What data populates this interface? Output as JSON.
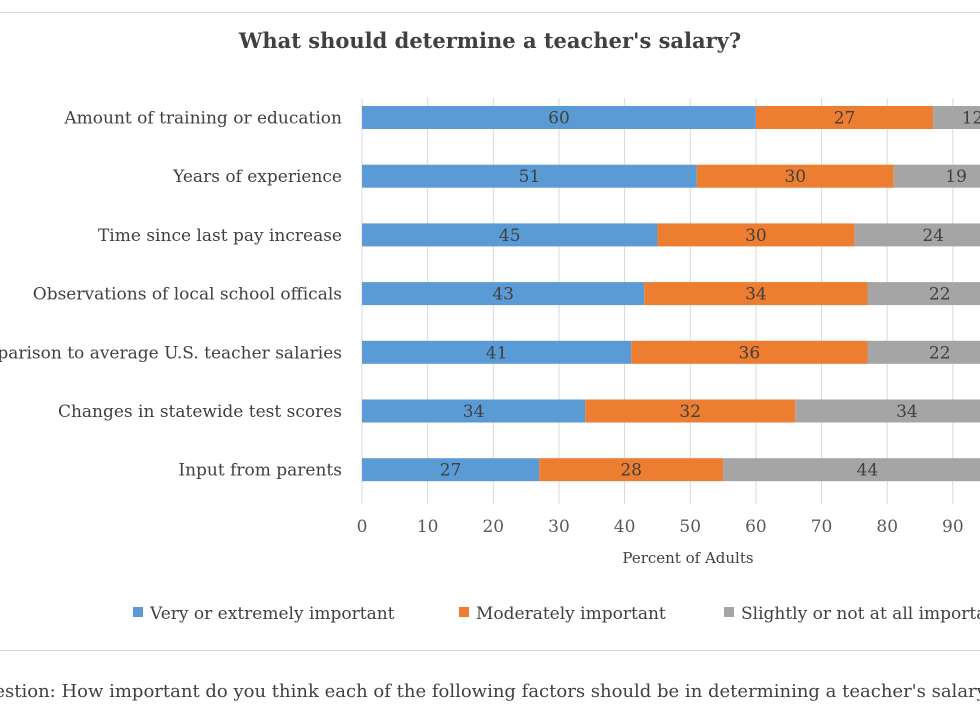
{
  "chart_data": {
    "type": "bar",
    "orientation": "horizontal",
    "stacked": true,
    "title": "What should determine a teacher's salary?",
    "xlabel": "Percent of Adults",
    "ylabel": "",
    "xlim": [
      0,
      100
    ],
    "xticks": [
      "0",
      "10",
      "20",
      "30",
      "40",
      "50",
      "60",
      "70",
      "80",
      "90"
    ],
    "grid": true,
    "legend_position": "bottom",
    "categories": [
      "Amount of training or education",
      "Years of experience",
      "Time since last pay increase",
      "Observations of local school officals",
      "Comparison to average U.S. teacher salaries ",
      "Changes in statewide test scores",
      "Input from parents"
    ],
    "series": [
      {
        "name": "Very or extremely important",
        "color": "#5b9bd5",
        "values": [
          60,
          51,
          45,
          43,
          41,
          34,
          27
        ]
      },
      {
        "name": "Moderately important",
        "color": "#ed7d31",
        "values": [
          27,
          30,
          30,
          34,
          36,
          32,
          28
        ]
      },
      {
        "name": "Slightly or not at all important",
        "color": "#a5a5a5",
        "values": [
          12,
          19,
          24,
          22,
          22,
          34,
          44
        ]
      }
    ]
  },
  "footnote": "Question: How important do you think each of the following factors should be in determining a teacher's salary?"
}
